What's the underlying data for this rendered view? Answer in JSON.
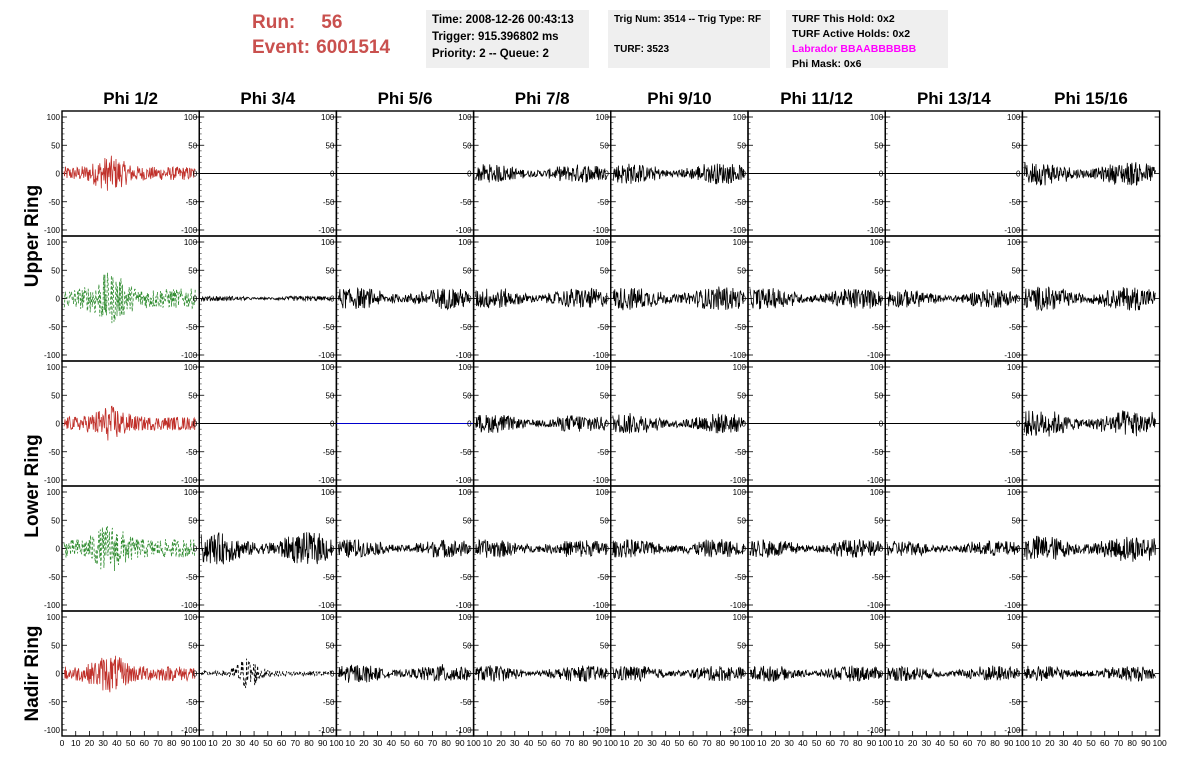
{
  "header": {
    "run_label": "Run:",
    "run_value": "56",
    "event_label": "Event:",
    "event_value": "6001514",
    "time": "Time: 2008-12-26 00:43:13",
    "trigger": "Trigger: 915.396802 ms",
    "priority_queue": "Priority: 2 -- Queue: 2",
    "trig_num_type": "Trig Num: 3514 -- Trig Type: RF",
    "turf": "TURF: 3523",
    "turf_this_hold": "TURF This Hold: 0x2",
    "turf_active_holds": "TURF Active Holds: 0x2",
    "labrador": "Labrador BBAABBBBBB",
    "phi_mask": "Phi Mask: 0x6"
  },
  "colors": {
    "run_text": "#c9504e",
    "labrador_text": "#ff00ff",
    "trace_red": "#c0302a",
    "trace_green": "#2e8b2e",
    "trace_black": "#000000",
    "trace_blue": "#0000cc",
    "info_bg": "#efefef"
  },
  "chart_data": {
    "type": "line",
    "columns": [
      "Phi 1/2",
      "Phi 3/4",
      "Phi 5/6",
      "Phi 7/8",
      "Phi 9/10",
      "Phi 11/12",
      "Phi 13/14",
      "Phi 15/16"
    ],
    "ring_labels": [
      "Upper Ring",
      "Lower Ring",
      "Nadir Ring"
    ],
    "y_ticks": [
      "100",
      "50",
      "0",
      "-50",
      "-100"
    ],
    "x_ticks": [
      "0",
      "10",
      "20",
      "30",
      "40",
      "50",
      "60",
      "70",
      "80",
      "90",
      "100"
    ],
    "ylim": [
      -100,
      100
    ],
    "xlim": [
      0,
      100
    ],
    "panels": [
      [
        {
          "style": "red",
          "amp": 22
        },
        {
          "style": "flat",
          "amp": 0
        },
        {
          "style": "flat",
          "amp": 0
        },
        {
          "style": "black",
          "amp": 14
        },
        {
          "style": "black",
          "amp": 16
        },
        {
          "style": "flat",
          "amp": 0
        },
        {
          "style": "flat",
          "amp": 0
        },
        {
          "style": "black",
          "amp": 18
        }
      ],
      [
        {
          "style": "green",
          "amp": 32
        },
        {
          "style": "black",
          "amp": 4
        },
        {
          "style": "black",
          "amp": 16
        },
        {
          "style": "black",
          "amp": 16
        },
        {
          "style": "black",
          "amp": 18
        },
        {
          "style": "black",
          "amp": 16
        },
        {
          "style": "black",
          "amp": 14
        },
        {
          "style": "black",
          "amp": 18
        }
      ],
      [
        {
          "style": "red",
          "amp": 22
        },
        {
          "style": "flat",
          "amp": 0
        },
        {
          "style": "flat-blue",
          "amp": 0
        },
        {
          "style": "black",
          "amp": 14
        },
        {
          "style": "black",
          "amp": 16
        },
        {
          "style": "flat",
          "amp": 0
        },
        {
          "style": "flat",
          "amp": 0
        },
        {
          "style": "black",
          "amp": 20
        }
      ],
      [
        {
          "style": "green",
          "amp": 30
        },
        {
          "style": "black",
          "amp": 24
        },
        {
          "style": "black",
          "amp": 14
        },
        {
          "style": "black",
          "amp": 14
        },
        {
          "style": "black",
          "amp": 14
        },
        {
          "style": "black",
          "amp": 14
        },
        {
          "style": "black",
          "amp": 12
        },
        {
          "style": "black",
          "amp": 20
        }
      ],
      [
        {
          "style": "red",
          "amp": 24
        },
        {
          "style": "black-dash",
          "amp": 18
        },
        {
          "style": "black",
          "amp": 14
        },
        {
          "style": "black",
          "amp": 12
        },
        {
          "style": "black",
          "amp": 12
        },
        {
          "style": "black",
          "amp": 12
        },
        {
          "style": "black",
          "amp": 12
        },
        {
          "style": "black",
          "amp": 12
        }
      ]
    ]
  }
}
